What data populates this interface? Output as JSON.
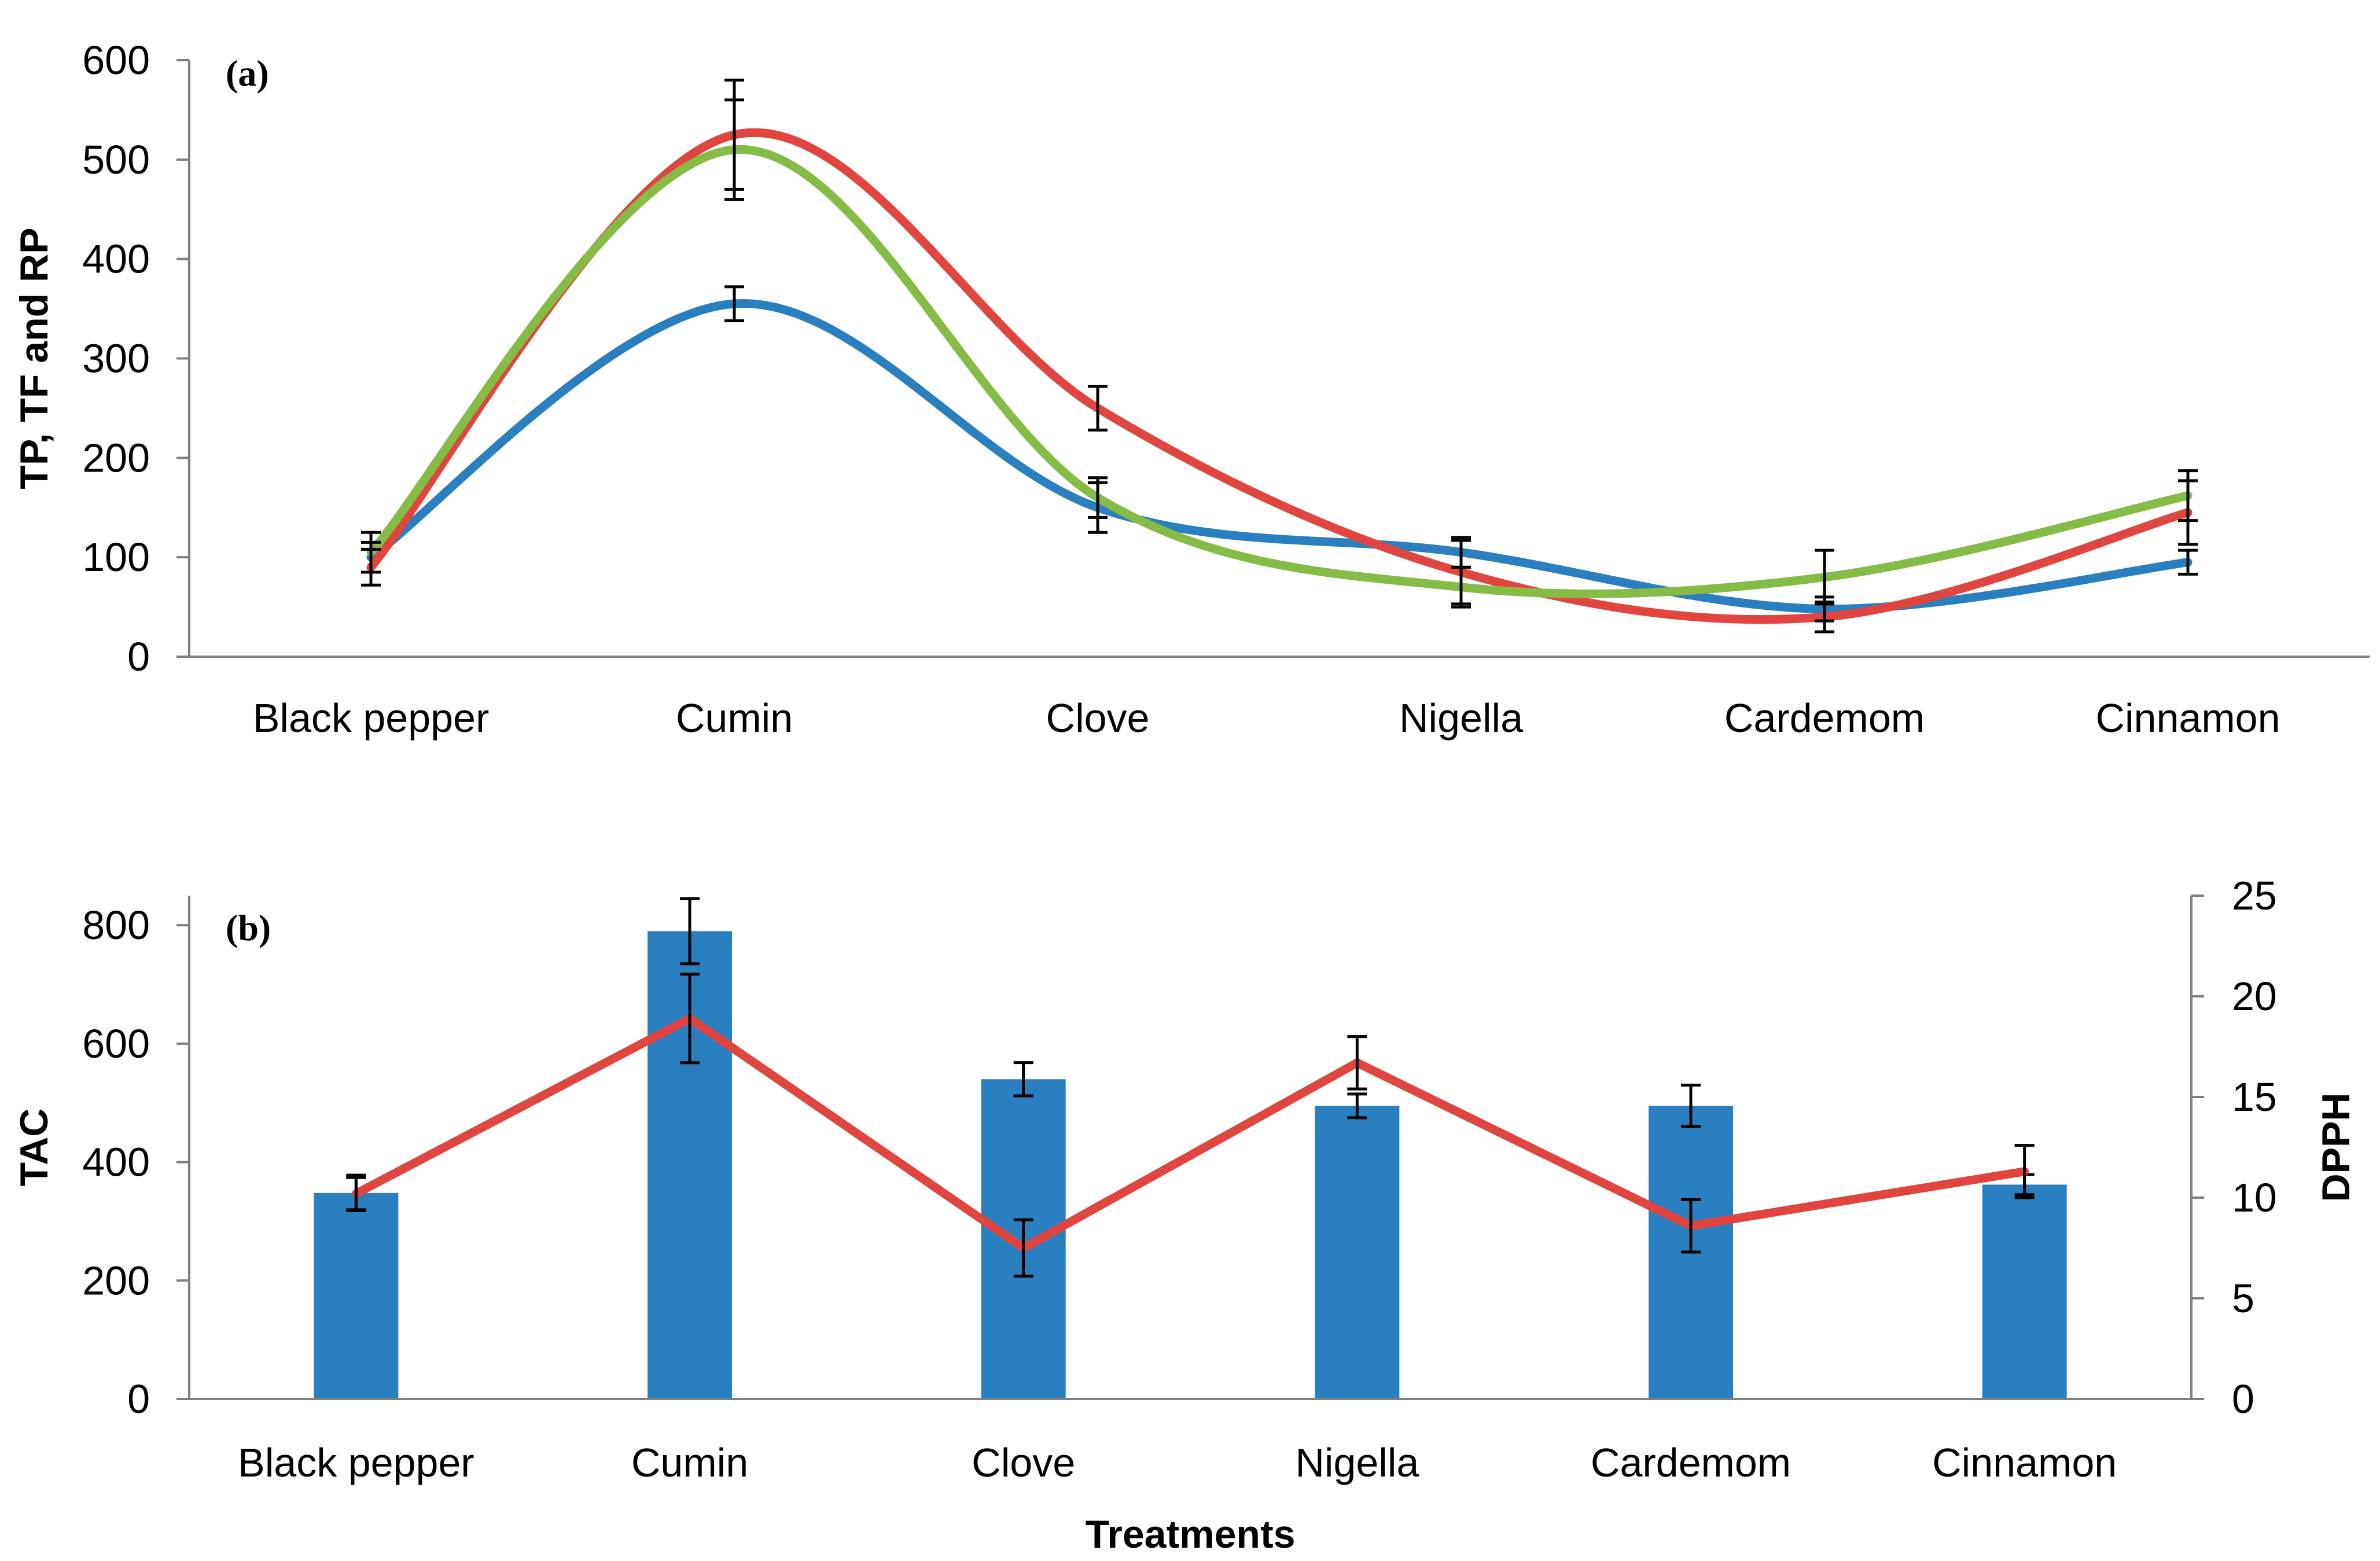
{
  "chart_data": [
    {
      "id": "a",
      "type": "line",
      "panel_label": "(a)",
      "title": "",
      "xlabel": "",
      "ylabel": "TP, TF and RP",
      "ylim": [
        0,
        600
      ],
      "yticks": [
        0,
        100,
        200,
        300,
        400,
        500,
        600
      ],
      "categories": [
        "Black pepper",
        "Cumin",
        "Clove",
        "Nigella",
        "Cardemom",
        "Cinnamon"
      ],
      "smooth": true,
      "series": [
        {
          "name": "TP",
          "color": "#2a7fc0",
          "values": [
            100,
            355,
            150,
            105,
            48,
            95
          ],
          "errors": [
            15,
            17,
            25,
            15,
            12,
            12
          ]
        },
        {
          "name": "TF",
          "color": "#e0453f",
          "values": [
            90,
            525,
            250,
            85,
            40,
            145
          ],
          "errors": [
            18,
            55,
            22,
            32,
            15,
            32
          ]
        },
        {
          "name": "RP",
          "color": "#86bb46",
          "values": [
            105,
            510,
            160,
            70,
            80,
            162
          ],
          "errors": [
            20,
            50,
            20,
            20,
            27,
            25
          ]
        }
      ]
    },
    {
      "id": "b",
      "type": "bar",
      "panel_label": "(b)",
      "title": "",
      "xlabel": "Treatments",
      "ylabel": "TAC",
      "y2label": "DPPH",
      "ylim": [
        0,
        850
      ],
      "yticks": [
        0,
        200,
        400,
        600,
        800
      ],
      "y2lim": [
        0,
        25
      ],
      "y2ticks": [
        0,
        5,
        10,
        15,
        20,
        25
      ],
      "categories": [
        "Black pepper",
        "Cumin",
        "Clove",
        "Nigella",
        "Cardemom",
        "Cinnamon"
      ],
      "series": [
        {
          "name": "TAC",
          "kind": "bar",
          "axis": "left",
          "color": "#2a7fc0",
          "values": [
            348,
            790,
            540,
            495,
            495,
            362
          ],
          "errors": [
            30,
            55,
            28,
            20,
            35,
            17
          ]
        },
        {
          "name": "DPPH",
          "kind": "line",
          "axis": "right",
          "color": "#e0453f",
          "values": [
            10.2,
            18.9,
            7.5,
            16.7,
            8.6,
            11.3
          ],
          "errors": [
            0.8,
            2.2,
            1.4,
            1.3,
            1.3,
            1.3
          ]
        }
      ]
    }
  ]
}
